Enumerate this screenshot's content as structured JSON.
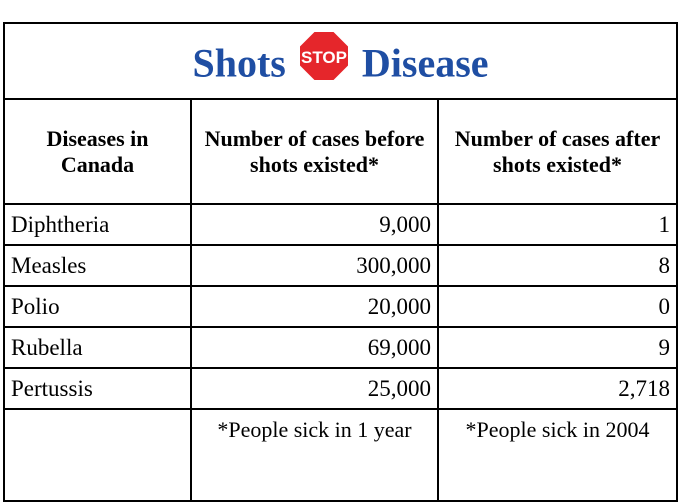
{
  "title": {
    "left": "Shots",
    "sign": "STOP",
    "right": "Disease"
  },
  "table": {
    "header": [
      "Diseases in Canada",
      "Number of cases before shots existed*",
      "Number of cases after shots existed*"
    ],
    "rows": [
      [
        "Diphtheria",
        "9,000",
        "1"
      ],
      [
        "Measles",
        "300,000",
        "8"
      ],
      [
        "Polio",
        "20,000",
        "0"
      ],
      [
        "Rubella",
        "69,000",
        "9"
      ],
      [
        "Pertussis",
        "25,000",
        "2,718"
      ]
    ],
    "footer": [
      "",
      "*People sick in 1 year",
      "*People sick in 2004"
    ]
  }
}
